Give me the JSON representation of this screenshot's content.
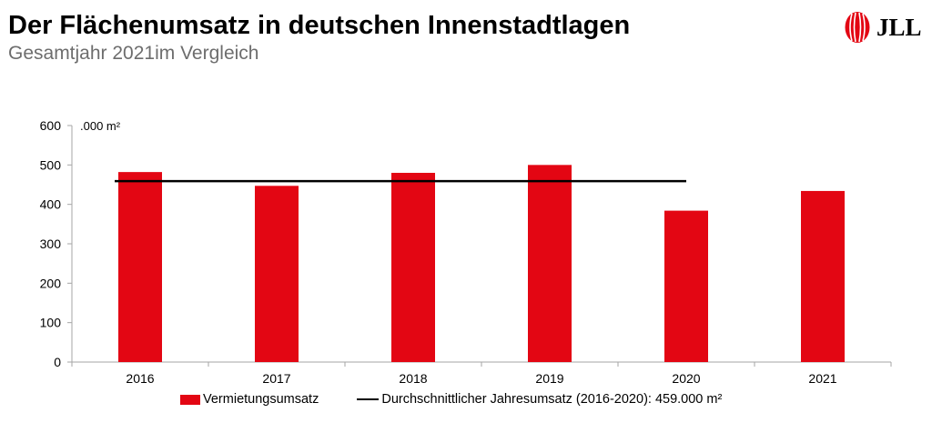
{
  "header": {
    "title": "Der Flächenumsatz in deutschen Innenstadtlagen",
    "subtitle": "Gesamtjahr 2021im Vergleich",
    "logo_text": "JLL"
  },
  "colors": {
    "bar": "#e30613",
    "average_line": "#000000",
    "axis": "#a6a6a6",
    "logo_red": "#e30613"
  },
  "chart_data": {
    "type": "bar",
    "categories": [
      "2016",
      "2017",
      "2018",
      "2019",
      "2020",
      "2021"
    ],
    "series": [
      {
        "name": "Vermietungsumsatz",
        "values": [
          482,
          447,
          480,
          500,
          384,
          434
        ]
      }
    ],
    "reference_line": {
      "name": "Durchschnittlicher Jahresumsatz (2016-2020): 459.000 m²",
      "value": 459,
      "from_category": "2016",
      "to_category": "2020"
    },
    "unit_label": ".000 m²",
    "ylim": [
      0,
      600
    ],
    "yticks": [
      0,
      100,
      200,
      300,
      400,
      500,
      600
    ],
    "grid": false,
    "legend_position": "bottom"
  },
  "legend": {
    "bar_label": "Vermietungsumsatz",
    "line_label": "Durchschnittlicher Jahresumsatz (2016-2020): 459.000 m²"
  }
}
